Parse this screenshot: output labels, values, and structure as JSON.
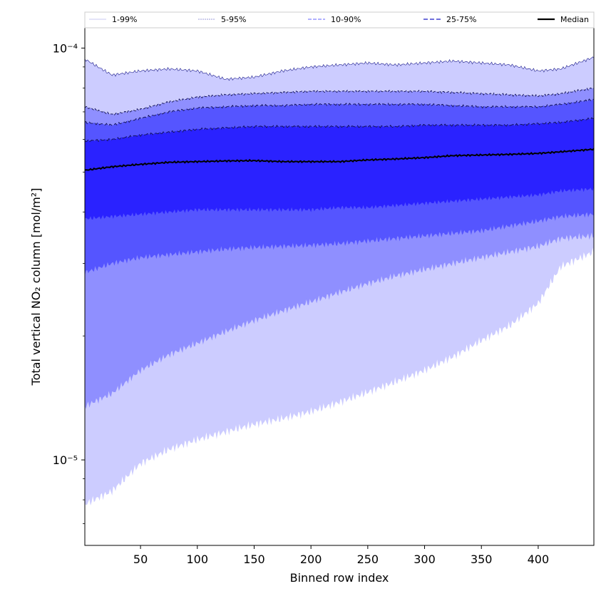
{
  "chart_data": {
    "type": "area",
    "xlabel": "Binned row index",
    "ylabel": "Total vertical NO₂ column [mol/m²]",
    "xlim": [
      1,
      449
    ],
    "ylim": [
      6.2e-06,
      0.000112
    ],
    "yscale": "log",
    "grid": false,
    "legend_placement": "top",
    "x_ticks": [
      {
        "value": 50,
        "label": "50"
      },
      {
        "value": 100,
        "label": "100"
      },
      {
        "value": 150,
        "label": "150"
      },
      {
        "value": 200,
        "label": "200"
      },
      {
        "value": 250,
        "label": "250"
      },
      {
        "value": 300,
        "label": "300"
      },
      {
        "value": 350,
        "label": "350"
      },
      {
        "value": 400,
        "label": "400"
      }
    ],
    "y_ticks": [
      {
        "value": 1e-05,
        "label": "10⁻⁵"
      },
      {
        "value": 0.0001,
        "label": "10⁻⁴"
      }
    ],
    "x": [
      1,
      25,
      50,
      75,
      100,
      125,
      150,
      175,
      200,
      225,
      250,
      275,
      300,
      325,
      350,
      375,
      400,
      420,
      449
    ],
    "series": [
      {
        "name": "1-99%",
        "lower": [
          7.8e-06,
          8.4e-06,
          9.8e-06,
          1.06e-05,
          1.12e-05,
          1.17e-05,
          1.22e-05,
          1.26e-05,
          1.31e-05,
          1.38e-05,
          1.46e-05,
          1.55e-05,
          1.65e-05,
          1.78e-05,
          1.95e-05,
          2.12e-05,
          2.4e-05,
          2.95e-05,
          3.2e-05
        ],
        "upper": [
          9.4e-05,
          8.6e-05,
          8.8e-05,
          8.9e-05,
          8.8e-05,
          8.4e-05,
          8.5e-05,
          8.8e-05,
          9e-05,
          9.1e-05,
          9.2e-05,
          9.1e-05,
          9.2e-05,
          9.3e-05,
          9.2e-05,
          9.1e-05,
          8.8e-05,
          8.9e-05,
          9.5e-05
        ]
      },
      {
        "name": "5-95%",
        "lower": [
          1.35e-05,
          1.45e-05,
          1.65e-05,
          1.8e-05,
          1.92e-05,
          2.05e-05,
          2.18e-05,
          2.3e-05,
          2.42e-05,
          2.55e-05,
          2.68e-05,
          2.8e-05,
          2.9e-05,
          3e-05,
          3.1e-05,
          3.2e-05,
          3.3e-05,
          3.45e-05,
          3.5e-05
        ],
        "upper": [
          7.2e-05,
          6.9e-05,
          7.1e-05,
          7.4e-05,
          7.6e-05,
          7.7e-05,
          7.75e-05,
          7.8e-05,
          7.85e-05,
          7.85e-05,
          7.85e-05,
          7.85e-05,
          7.85e-05,
          7.8e-05,
          7.75e-05,
          7.7e-05,
          7.65e-05,
          7.75e-05,
          8e-05
        ]
      },
      {
        "name": "10-90%",
        "lower": [
          2.85e-05,
          3e-05,
          3.1e-05,
          3.15e-05,
          3.2e-05,
          3.25e-05,
          3.28e-05,
          3.3e-05,
          3.32e-05,
          3.35e-05,
          3.4e-05,
          3.45e-05,
          3.5e-05,
          3.55e-05,
          3.6e-05,
          3.7e-05,
          3.8e-05,
          3.9e-05,
          3.95e-05
        ],
        "upper": [
          6.6e-05,
          6.5e-05,
          6.75e-05,
          7e-05,
          7.15e-05,
          7.2e-05,
          7.25e-05,
          7.25e-05,
          7.3e-05,
          7.3e-05,
          7.3e-05,
          7.3e-05,
          7.3e-05,
          7.25e-05,
          7.2e-05,
          7.2e-05,
          7.2e-05,
          7.3e-05,
          7.5e-05
        ]
      },
      {
        "name": "25-75%",
        "lower": [
          3.85e-05,
          3.9e-05,
          3.95e-05,
          4e-05,
          4.05e-05,
          4.05e-05,
          4.05e-05,
          4.05e-05,
          4.05e-05,
          4.1e-05,
          4.1e-05,
          4.15e-05,
          4.2e-05,
          4.25e-05,
          4.3e-05,
          4.35e-05,
          4.4e-05,
          4.5e-05,
          4.55e-05
        ],
        "upper": [
          5.95e-05,
          6e-05,
          6.15e-05,
          6.25e-05,
          6.35e-05,
          6.4e-05,
          6.45e-05,
          6.45e-05,
          6.45e-05,
          6.45e-05,
          6.45e-05,
          6.45e-05,
          6.5e-05,
          6.5e-05,
          6.5e-05,
          6.5e-05,
          6.55e-05,
          6.6e-05,
          6.75e-05
        ]
      },
      {
        "name": "Median",
        "values": [
          5.05e-05,
          5.15e-05,
          5.22e-05,
          5.28e-05,
          5.3e-05,
          5.32e-05,
          5.33e-05,
          5.3e-05,
          5.3e-05,
          5.3e-05,
          5.35e-05,
          5.38e-05,
          5.42e-05,
          5.48e-05,
          5.5e-05,
          5.52e-05,
          5.55e-05,
          5.6e-05,
          5.68e-05
        ]
      }
    ],
    "colors": {
      "band_1_99": "#ccccff",
      "band_5_95": "#8f8fff",
      "band_10_90": "#5555ff",
      "band_25_75": "#2a22ff",
      "median": "#000000",
      "line_1_99": "#c8c8f0",
      "line_5_95": "#9a9ad8",
      "line_10_90": "#8080ff",
      "line_25_75": "#4040d0"
    }
  }
}
